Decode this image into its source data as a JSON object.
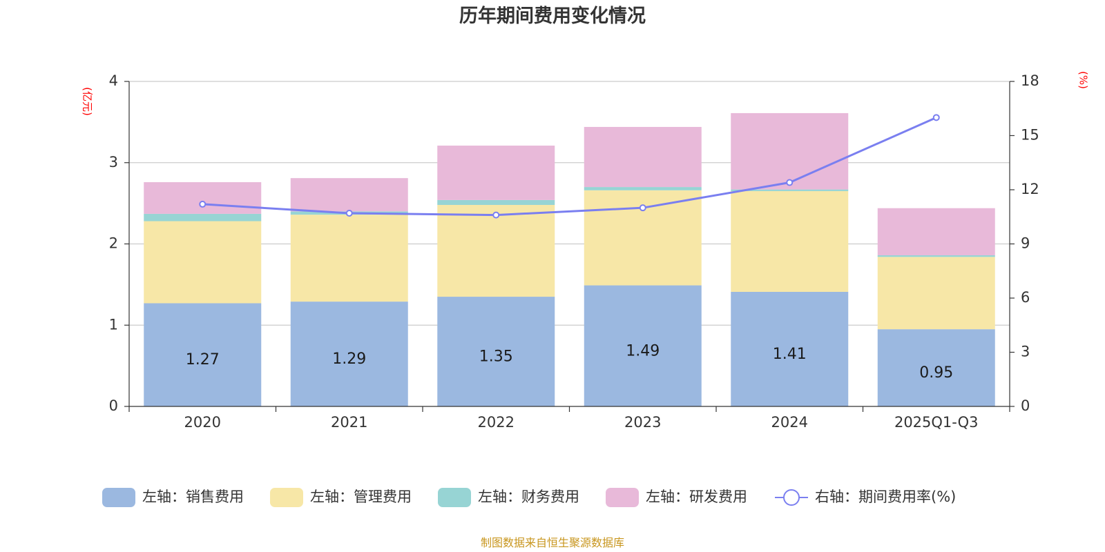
{
  "chart_data": {
    "type": "bar",
    "title": "历年期间费用变化情况",
    "categories": [
      "2020",
      "2021",
      "2022",
      "2023",
      "2024",
      "2025Q1-Q3"
    ],
    "series": [
      {
        "name": "左轴：销售费用",
        "axis": "left",
        "kind": "stacked-bar",
        "color": "#9bb8e0",
        "values": [
          1.27,
          1.29,
          1.35,
          1.49,
          1.41,
          0.95
        ],
        "labels": [
          "1.27",
          "1.29",
          "1.35",
          "1.49",
          "1.41",
          "0.95"
        ]
      },
      {
        "name": "左轴：管理费用",
        "axis": "left",
        "kind": "stacked-bar",
        "color": "#f7e7a7",
        "values": [
          1.01,
          1.07,
          1.13,
          1.17,
          1.24,
          0.89
        ]
      },
      {
        "name": "左轴：财务费用",
        "axis": "left",
        "kind": "stacked-bar",
        "color": "#97d4d4",
        "values": [
          0.09,
          0.04,
          0.06,
          0.04,
          0.02,
          0.02
        ]
      },
      {
        "name": "左轴：研发费用",
        "axis": "left",
        "kind": "stacked-bar",
        "color": "#e8b9d9",
        "values": [
          0.39,
          0.41,
          0.67,
          0.74,
          0.94,
          0.58
        ]
      },
      {
        "name": "右轴：期间费用率(%)",
        "axis": "right",
        "kind": "line",
        "color": "#7a7ff0",
        "values": [
          11.2,
          10.7,
          10.6,
          11.0,
          12.4,
          16.0
        ]
      }
    ],
    "y_left": {
      "unit": "(亿元)",
      "ylim": [
        0,
        4
      ],
      "ticks": [
        "0",
        "1",
        "2",
        "3",
        "4"
      ]
    },
    "y_right": {
      "unit": "(%)",
      "ylim": [
        0,
        18
      ],
      "ticks": [
        "0",
        "3",
        "6",
        "9",
        "12",
        "15",
        "18"
      ]
    },
    "grid": true,
    "legend_position": "bottom",
    "unit_color": "#ff0000",
    "grid_color": "#cccccc",
    "axis_color": "#333333"
  },
  "footer": "制图数据来自恒生聚源数据库"
}
